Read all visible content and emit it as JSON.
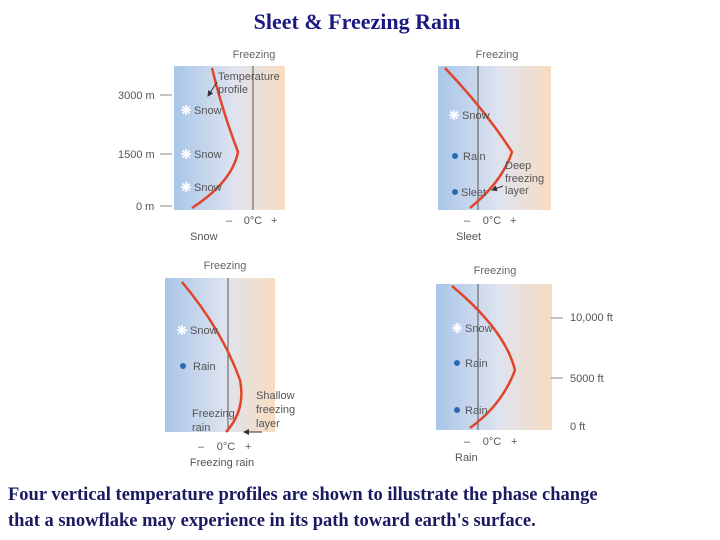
{
  "title": "Sleet & Freezing Rain",
  "panels": [
    {
      "freezing_label": "Freezing",
      "altitude_labels": [
        "3000 m",
        "1500 m",
        "0 m"
      ],
      "annotation": [
        "Temperature",
        "profile"
      ],
      "precip_labels": [
        "Snow",
        "Snow",
        "Snow"
      ],
      "axis": [
        "–",
        "0°C",
        "+"
      ],
      "name": "Snow"
    },
    {
      "freezing_label": "Freezing",
      "annotation": [
        "Deep",
        "freezing",
        "layer"
      ],
      "precip_labels": [
        "Snow",
        "Rain",
        "Sleet"
      ],
      "axis": [
        "–",
        "0°C",
        "+"
      ],
      "name": "Sleet"
    },
    {
      "freezing_label": "Freezing",
      "annotation": [
        "Shallow",
        "freezing",
        "layer"
      ],
      "precip_labels": [
        "Snow",
        "Rain",
        "Freezing",
        "rain"
      ],
      "axis": [
        "–",
        "0°C",
        "+"
      ],
      "name": "Freezing rain"
    },
    {
      "freezing_label": "Freezing",
      "altitude_labels": [
        "10,000 ft",
        "5000 ft",
        "0 ft"
      ],
      "precip_labels": [
        "Snow",
        "Rain",
        "Rain"
      ],
      "axis": [
        "–",
        "0°C",
        "+"
      ],
      "name": "Rain"
    }
  ],
  "caption": [
    "Four vertical temperature profiles are shown to illustrate the phase change",
    "that a snowflake may experience in its path toward earth's surface."
  ]
}
